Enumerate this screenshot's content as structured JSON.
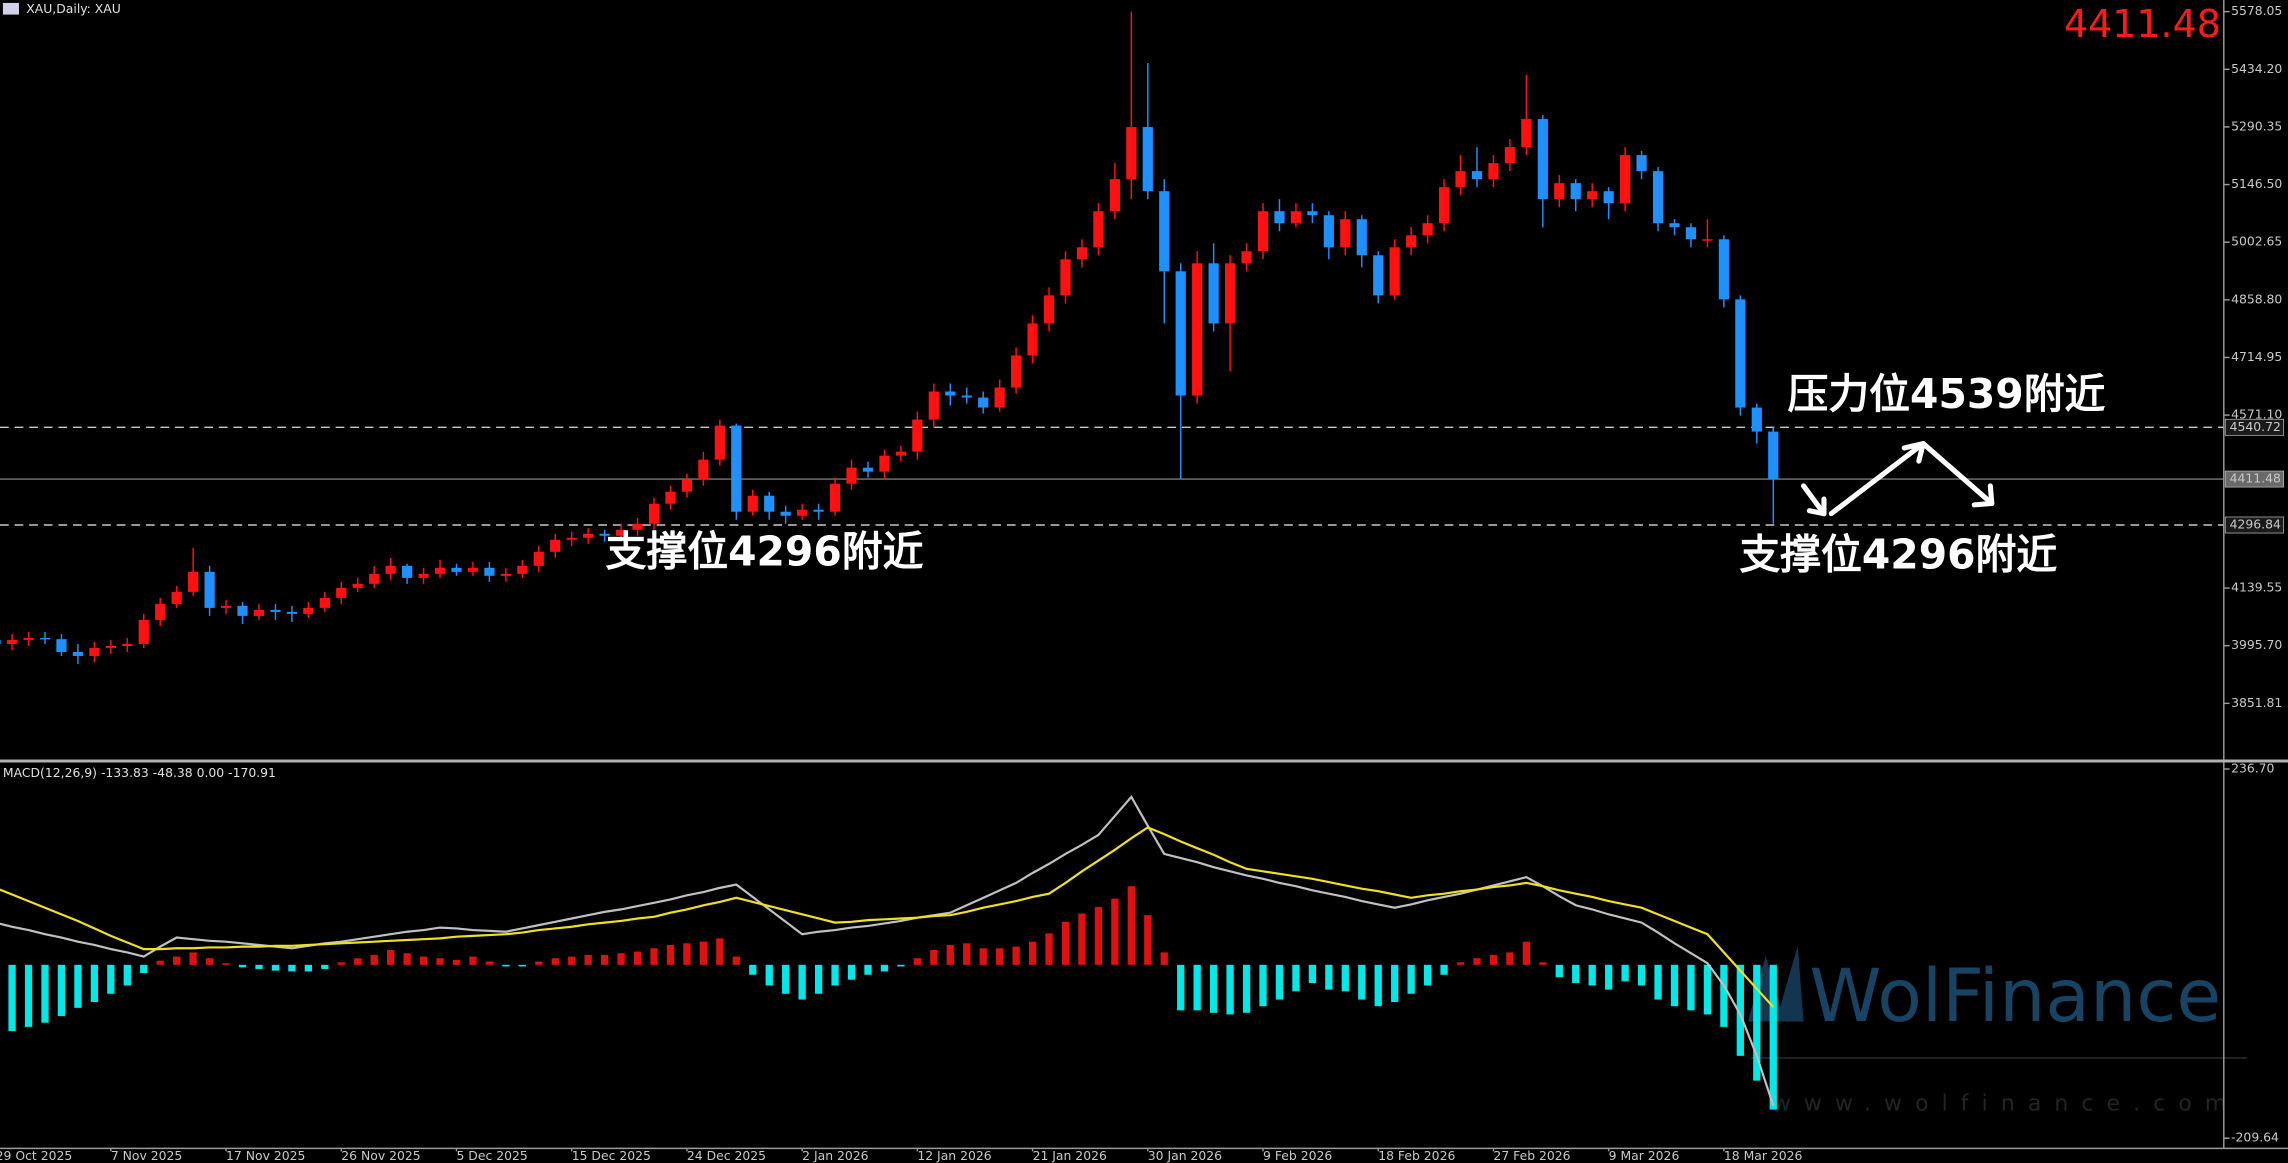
{
  "chart_data": [
    {
      "type": "candlestick",
      "title": "XAU,Daily: XAU",
      "last_price": 4411.48,
      "up_color": "#ff1111",
      "down_color": "#1e90ff",
      "categories": [
        "29 Oct 2025",
        null,
        null,
        null,
        null,
        null,
        null,
        "7 Nov 2025",
        null,
        null,
        null,
        null,
        null,
        null,
        "17 Nov 2025",
        null,
        null,
        null,
        null,
        null,
        null,
        "26 Nov 2025",
        null,
        null,
        null,
        null,
        null,
        null,
        "5 Dec 2025",
        null,
        null,
        null,
        null,
        null,
        null,
        "15 Dec 2025",
        null,
        null,
        null,
        null,
        null,
        null,
        "24 Dec 2025",
        null,
        null,
        null,
        null,
        null,
        null,
        "2 Jan 2026",
        null,
        null,
        null,
        null,
        null,
        null,
        "12 Jan 2026",
        null,
        null,
        null,
        null,
        null,
        null,
        "21 Jan 2026",
        null,
        null,
        null,
        null,
        null,
        null,
        "30 Jan 2026",
        null,
        null,
        null,
        null,
        null,
        null,
        "9 Feb 2026",
        null,
        null,
        null,
        null,
        null,
        null,
        "18 Feb 2026",
        null,
        null,
        null,
        null,
        null,
        null,
        "27 Feb 2026",
        null,
        null,
        null,
        null,
        null,
        null,
        "9 Mar 2026",
        null,
        null,
        null,
        null,
        null,
        null,
        "18 Mar 2026",
        null,
        null,
        null
      ],
      "ohlc": {
        "open": [
          4010,
          4000,
          4010,
          4015,
          4012,
          3980,
          3970,
          3990,
          3995,
          4000,
          4060,
          4100,
          4130,
          4180,
          4090,
          4095,
          4070,
          4085,
          4080,
          4075,
          4090,
          4115,
          4140,
          4150,
          4175,
          4195,
          4165,
          4175,
          4190,
          4180,
          4190,
          4170,
          4175,
          4195,
          4230,
          4260,
          4265,
          4275,
          4270,
          4285,
          4300,
          4350,
          4380,
          4410,
          4460,
          4545,
          4330,
          4370,
          4330,
          4320,
          4335,
          4330,
          4400,
          4440,
          4430,
          4470,
          4480,
          4560,
          4630,
          4620,
          4615,
          4590,
          4640,
          4720,
          4800,
          4870,
          4960,
          4990,
          5080,
          5160,
          5290,
          5130,
          4930,
          4620,
          4950,
          4800,
          4950,
          4980,
          5080,
          5050,
          5080,
          5070,
          4990,
          5060,
          4970,
          4870,
          4990,
          5020,
          5050,
          5140,
          5180,
          5160,
          5200,
          5240,
          5310,
          5110,
          5150,
          5110,
          5130,
          5100,
          5220,
          5180,
          5050,
          5040,
          5010,
          5010,
          4860,
          4590,
          4530
        ],
        "high": [
          4030,
          4025,
          4030,
          4030,
          4025,
          4000,
          4005,
          4010,
          4015,
          4075,
          4115,
          4145,
          4240,
          4195,
          4110,
          4105,
          4100,
          4100,
          4095,
          4105,
          4130,
          4155,
          4165,
          4195,
          4215,
          4200,
          4190,
          4210,
          4200,
          4205,
          4205,
          4190,
          4210,
          4245,
          4275,
          4280,
          4290,
          4285,
          4300,
          4315,
          4365,
          4395,
          4425,
          4480,
          4560,
          4550,
          4385,
          4380,
          4345,
          4350,
          4350,
          4415,
          4460,
          4455,
          4485,
          4495,
          4580,
          4650,
          4650,
          4640,
          4630,
          4660,
          4740,
          4820,
          4890,
          4980,
          5010,
          5100,
          5200,
          5578,
          5450,
          5160,
          4950,
          4980,
          5000,
          4970,
          5000,
          5100,
          5110,
          5100,
          5100,
          5080,
          5080,
          5070,
          4980,
          5010,
          5040,
          5070,
          5160,
          5220,
          5240,
          5220,
          5260,
          5420,
          5320,
          5170,
          5160,
          5150,
          5140,
          5240,
          5230,
          5190,
          5060,
          5050,
          5060,
          5020,
          4870,
          4600,
          4540
        ],
        "low": [
          3960,
          3985,
          3995,
          4000,
          3970,
          3950,
          3955,
          3975,
          3980,
          3990,
          4045,
          4090,
          4120,
          4070,
          4075,
          4050,
          4060,
          4060,
          4055,
          4065,
          4080,
          4100,
          4130,
          4140,
          4160,
          4150,
          4150,
          4165,
          4170,
          4170,
          4155,
          4155,
          4165,
          4180,
          4215,
          4245,
          4250,
          4255,
          4260,
          4270,
          4285,
          4335,
          4365,
          4395,
          4445,
          4310,
          4320,
          4310,
          4300,
          4310,
          4310,
          4320,
          4385,
          4415,
          4410,
          4455,
          4460,
          4540,
          4595,
          4600,
          4575,
          4580,
          4625,
          4700,
          4780,
          4850,
          4940,
          4970,
          5060,
          5110,
          5110,
          4800,
          4412,
          4600,
          4780,
          4680,
          4930,
          4960,
          5030,
          5040,
          5050,
          4960,
          4970,
          4940,
          4850,
          4860,
          4970,
          5000,
          5030,
          5120,
          5140,
          5140,
          5180,
          5220,
          5040,
          5090,
          5080,
          5090,
          5060,
          5080,
          5160,
          5030,
          5020,
          4990,
          4990,
          4840,
          4570,
          4500,
          4300
        ],
        "close": [
          4000,
          4010,
          4015,
          4012,
          3980,
          3970,
          3990,
          3995,
          4000,
          4060,
          4100,
          4130,
          4180,
          4090,
          4095,
          4070,
          4085,
          4080,
          4075,
          4090,
          4115,
          4140,
          4150,
          4175,
          4195,
          4165,
          4175,
          4190,
          4180,
          4190,
          4170,
          4175,
          4195,
          4230,
          4260,
          4265,
          4275,
          4270,
          4285,
          4300,
          4350,
          4380,
          4410,
          4460,
          4545,
          4330,
          4370,
          4330,
          4320,
          4335,
          4330,
          4400,
          4440,
          4430,
          4470,
          4480,
          4560,
          4630,
          4620,
          4615,
          4590,
          4640,
          4720,
          4800,
          4870,
          4960,
          4990,
          5080,
          5160,
          5290,
          5130,
          4930,
          4620,
          4950,
          4800,
          4950,
          4980,
          5080,
          5050,
          5080,
          5070,
          4990,
          5060,
          4970,
          4870,
          4990,
          5020,
          5050,
          5140,
          5180,
          5160,
          5200,
          5240,
          5310,
          5110,
          5150,
          5110,
          5130,
          5100,
          5220,
          5180,
          5050,
          5040,
          5010,
          5010,
          4860,
          4590,
          4530,
          4411.48
        ]
      },
      "ylim": [
        3713.4,
        5607.1
      ],
      "yticks": [
        5578.05,
        {
          "value": 5434.2,
          "label": "5434.20"
        },
        5290.35,
        {
          "value": 5146.5,
          "label": "5146.50"
        },
        5002.65,
        {
          "value": 4858.8,
          "label": "4858.80"
        },
        4714.95,
        {
          "value": 4571.1,
          "label": "4571.10"
        },
        4139.55,
        {
          "value": 3995.7,
          "label": "3995.70"
        },
        3851.81
      ],
      "levels": [
        {
          "value": 4540.72,
          "style": "dashed"
        },
        {
          "value": 4411.48,
          "style": "solid"
        },
        {
          "value": 4296.84,
          "style": "dashed"
        }
      ],
      "annotations": [
        "支撑位4296附近",
        "压力位4539附近",
        "支撑位4296附近"
      ],
      "watermark": {
        "text": "WolFinance",
        "url": "www.wolfinance.com"
      }
    },
    {
      "type": "macd",
      "title": "MACD(12,26,9) -133.83 -48.38 0.00 -170.91",
      "ylim": [
        -221.9,
        245.5
      ],
      "yticks": [
        {
          "value": 236.7,
          "label": "236.70"
        },
        -209.64
      ],
      "histogram": {
        "positive_color": "#e01010",
        "negative_color": "#00e8e8",
        "values": [
          -85,
          -80,
          -75,
          -70,
          -62,
          -52,
          -45,
          -35,
          -25,
          -10,
          5,
          10,
          15,
          8,
          2,
          -3,
          -5,
          -7,
          -8,
          -8,
          -5,
          3,
          8,
          12,
          18,
          14,
          10,
          8,
          6,
          10,
          4,
          -2,
          -2,
          4,
          8,
          10,
          12,
          12,
          14,
          16,
          20,
          24,
          26,
          28,
          32,
          10,
          -12,
          -25,
          -35,
          -42,
          -35,
          -25,
          -18,
          -12,
          -8,
          -2,
          8,
          18,
          24,
          26,
          20,
          20,
          22,
          28,
          38,
          52,
          62,
          70,
          80,
          95,
          60,
          15,
          -55,
          -55,
          -58,
          -60,
          -58,
          -50,
          -42,
          -32,
          -22,
          -30,
          -32,
          -42,
          -50,
          -45,
          -35,
          -25,
          -12,
          3,
          8,
          12,
          15,
          28,
          3,
          -15,
          -22,
          -25,
          -30,
          -20,
          -25,
          -42,
          -50,
          -55,
          -60,
          -75,
          -110,
          -140,
          -175
        ]
      },
      "lines": [
        {
          "color": "#c0c0c0",
          "values": [
            51,
            46,
            42,
            37,
            33,
            28,
            24,
            19,
            15,
            10,
            22,
            33,
            31,
            29,
            28,
            26,
            24,
            22,
            20,
            23,
            26,
            28,
            31,
            34,
            37,
            40,
            42,
            45,
            44,
            42,
            41,
            40,
            44,
            48,
            52,
            56,
            60,
            64,
            67,
            71,
            75,
            79,
            84,
            88,
            93,
            97,
            82,
            67,
            52,
            37,
            40,
            42,
            45,
            47,
            50,
            53,
            57,
            60,
            63,
            72,
            81,
            90,
            99,
            111,
            122,
            134,
            145,
            157,
            180,
            203,
            168,
            134,
            129,
            124,
            118,
            113,
            108,
            104,
            99,
            95,
            90,
            86,
            82,
            77,
            73,
            69,
            73,
            78,
            82,
            86,
            91,
            96,
            101,
            106,
            95,
            83,
            72,
            67,
            61,
            56,
            51,
            39,
            26,
            14,
            2,
            -25,
            -60,
            -110,
            -170
          ]
        },
        {
          "color": "#f0e020",
          "values": [
            93,
            85,
            77,
            69,
            61,
            53,
            44,
            35,
            27,
            19,
            19,
            20,
            20,
            21,
            21,
            22,
            22,
            23,
            23,
            24,
            25,
            26,
            27,
            28,
            29,
            30,
            31,
            32,
            34,
            35,
            36,
            37,
            39,
            42,
            44,
            46,
            49,
            51,
            53,
            56,
            58,
            63,
            67,
            72,
            76,
            81,
            76,
            71,
            66,
            61,
            56,
            51,
            52,
            54,
            55,
            56,
            57,
            59,
            60,
            64,
            69,
            73,
            77,
            82,
            86,
            99,
            113,
            126,
            139,
            153,
            166,
            158,
            149,
            141,
            133,
            124,
            116,
            113,
            110,
            107,
            104,
            100,
            96,
            92,
            89,
            85,
            81,
            84,
            86,
            89,
            91,
            94,
            96,
            99,
            95,
            90,
            86,
            82,
            77,
            73,
            69,
            61,
            53,
            45,
            37,
            15,
            -7,
            -29,
            -51
          ]
        }
      ]
    }
  ]
}
